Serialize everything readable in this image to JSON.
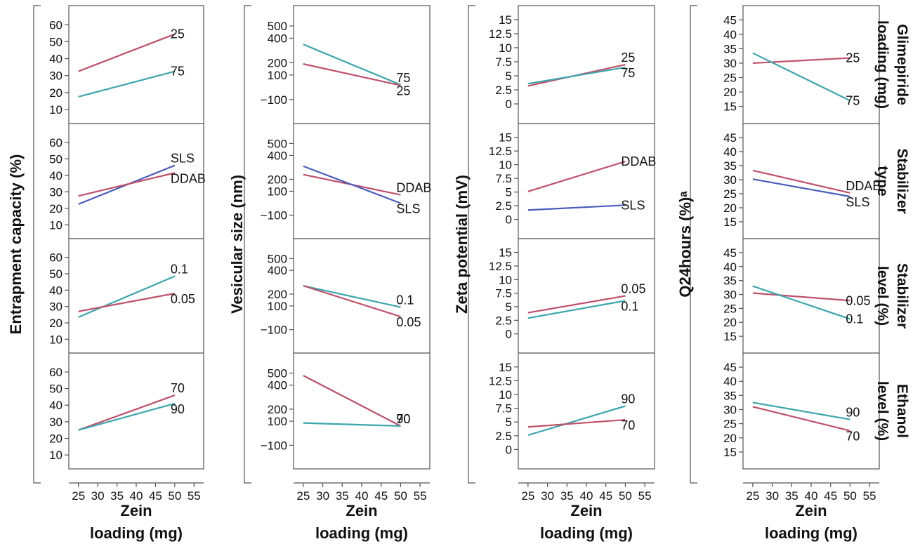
{
  "x_axis": {
    "title_line1": "Zein",
    "title_line2": "loading (mg)",
    "ticks": [
      25,
      30,
      35,
      40,
      45,
      50,
      55
    ],
    "range": [
      22.5,
      57.5
    ]
  },
  "colors": {
    "series_a": "#c0506a",
    "series_b": "#3aa6ad",
    "series_blue": "#4a5dbd"
  },
  "row_titles": [
    [
      "Glimepiride",
      "loading (mg)"
    ],
    [
      "Stabilizer",
      "type"
    ],
    [
      "Stabilizer",
      "level (%)"
    ],
    [
      "Ethanol",
      "level (%)"
    ]
  ],
  "chart_data": [
    {
      "type": "line",
      "ylabel": "Entrapment capacity (%)",
      "yticks": [
        10,
        20,
        30,
        40,
        50,
        60
      ],
      "ylim": [
        5,
        68
      ],
      "panels": [
        {
          "factor": "Glimepiride loading (mg)",
          "series": [
            {
              "name": "25",
              "color": "#c0506a",
              "x": [
                25,
                50
              ],
              "y": [
                32.5,
                54.5
              ]
            },
            {
              "name": "75",
              "color": "#3aa6ad",
              "x": [
                25,
                50
              ],
              "y": [
                17.5,
                32.5
              ]
            }
          ]
        },
        {
          "factor": "Stabilizer type",
          "series": [
            {
              "name": "SLS",
              "color": "#4a5dbd",
              "x": [
                25,
                50
              ],
              "y": [
                22.5,
                46
              ]
            },
            {
              "name": "DDAB",
              "color": "#c0506a",
              "x": [
                25,
                50
              ],
              "y": [
                27.5,
                41.5
              ]
            }
          ]
        },
        {
          "factor": "Stabilizer level (%)",
          "series": [
            {
              "name": "0.1",
              "color": "#3aa6ad",
              "x": [
                25,
                50
              ],
              "y": [
                23.5,
                48.5
              ]
            },
            {
              "name": "0.05",
              "color": "#c0506a",
              "x": [
                25,
                50
              ],
              "y": [
                27,
                38
              ]
            }
          ]
        },
        {
          "factor": "Ethanol level (%)",
          "series": [
            {
              "name": "70",
              "color": "#c0506a",
              "x": [
                25,
                50
              ],
              "y": [
                25,
                46
              ]
            },
            {
              "name": "90",
              "color": "#3aa6ad",
              "x": [
                25,
                50
              ],
              "y": [
                25,
                41
              ]
            }
          ]
        }
      ]
    },
    {
      "type": "line",
      "ylabel": "Vesicular size (nm)",
      "yticks": [
        -100,
        100,
        200,
        400,
        500
      ],
      "ytick_labels": [
        "−100",
        "100",
        "200",
        "400",
        "500"
      ],
      "ylim": [
        -250,
        620
      ],
      "panels": [
        {
          "factor": "Glimepiride loading (mg)",
          "series": [
            {
              "name": "75",
              "color": "#3aa6ad",
              "x": [
                25,
                50
              ],
              "y": [
                350,
                20
              ]
            },
            {
              "name": "25",
              "color": "#c0506a",
              "x": [
                25,
                50
              ],
              "y": [
                190,
                15
              ]
            }
          ]
        },
        {
          "factor": "Stabilizer type",
          "series": [
            {
              "name": "DDAB",
              "color": "#c0506a",
              "x": [
                25,
                50
              ],
              "y": [
                240,
                70
              ]
            },
            {
              "name": "SLS",
              "color": "#4a5dbd",
              "x": [
                25,
                50
              ],
              "y": [
                310,
                0
              ]
            }
          ]
        },
        {
          "factor": "Stabilizer level (%)",
          "series": [
            {
              "name": "0.1",
              "color": "#3aa6ad",
              "x": [
                25,
                50
              ],
              "y": [
                270,
                90
              ]
            },
            {
              "name": "0.05",
              "color": "#c0506a",
              "x": [
                25,
                50
              ],
              "y": [
                270,
                10
              ]
            }
          ]
        },
        {
          "factor": "Ethanol level (%)",
          "series": [
            {
              "name": "70",
              "color": "#c0506a",
              "x": [
                25,
                50
              ],
              "y": [
                480,
                60
              ]
            },
            {
              "name": "90",
              "color": "#3aa6ad",
              "x": [
                25,
                50
              ],
              "y": [
                85,
                60
              ]
            }
          ]
        }
      ]
    },
    {
      "type": "line",
      "ylabel": "Zeta potential (mV)",
      "yticks": [
        0,
        2.5,
        5,
        7.5,
        10,
        12.5,
        15
      ],
      "ylim": [
        -2.5,
        16.5
      ],
      "panels": [
        {
          "factor": "Glimepiride loading (mg)",
          "series": [
            {
              "name": "25",
              "color": "#c0506a",
              "x": [
                25,
                50
              ],
              "y": [
                3.2,
                7
              ]
            },
            {
              "name": "75",
              "color": "#3aa6ad",
              "x": [
                25,
                50
              ],
              "y": [
                3.6,
                6.5
              ]
            }
          ]
        },
        {
          "factor": "Stabilizer type",
          "series": [
            {
              "name": "DDAB",
              "color": "#c0506a",
              "x": [
                25,
                50
              ],
              "y": [
                5.1,
                10.6
              ]
            },
            {
              "name": "SLS",
              "color": "#4a5dbd",
              "x": [
                25,
                50
              ],
              "y": [
                1.7,
                2.6
              ]
            }
          ]
        },
        {
          "factor": "Stabilizer level (%)",
          "series": [
            {
              "name": "0.05",
              "color": "#c0506a",
              "x": [
                25,
                50
              ],
              "y": [
                3.9,
                7
              ]
            },
            {
              "name": "0.1",
              "color": "#3aa6ad",
              "x": [
                25,
                50
              ],
              "y": [
                2.9,
                6.1
              ]
            }
          ]
        },
        {
          "factor": "Ethanol level (%)",
          "series": [
            {
              "name": "90",
              "color": "#3aa6ad",
              "x": [
                25,
                50
              ],
              "y": [
                2.6,
                7.9
              ]
            },
            {
              "name": "70",
              "color": "#c0506a",
              "x": [
                25,
                50
              ],
              "y": [
                4.1,
                5.4
              ]
            }
          ]
        }
      ]
    },
    {
      "type": "line",
      "ylabel": "Q24hours (%)ᵃ",
      "yticks": [
        15,
        20,
        25,
        30,
        35,
        40,
        45
      ],
      "ylim": [
        11,
        48
      ],
      "panels": [
        {
          "factor": "Glimepiride loading (mg)",
          "series": [
            {
              "name": "25",
              "color": "#c0506a",
              "x": [
                25,
                50
              ],
              "y": [
                30,
                31.8
              ]
            },
            {
              "name": "75",
              "color": "#3aa6ad",
              "x": [
                25,
                50
              ],
              "y": [
                33.5,
                17
              ]
            }
          ]
        },
        {
          "factor": "Stabilizer type",
          "series": [
            {
              "name": "DDAB",
              "color": "#c0506a",
              "x": [
                25,
                50
              ],
              "y": [
                33.3,
                25.3
              ]
            },
            {
              "name": "SLS",
              "color": "#4a5dbd",
              "x": [
                25,
                50
              ],
              "y": [
                30.2,
                24
              ]
            }
          ]
        },
        {
          "factor": "Stabilizer level (%)",
          "series": [
            {
              "name": "0.05",
              "color": "#c0506a",
              "x": [
                25,
                50
              ],
              "y": [
                30.5,
                27.8
              ]
            },
            {
              "name": "0.1",
              "color": "#3aa6ad",
              "x": [
                25,
                50
              ],
              "y": [
                33,
                21.2
              ]
            }
          ]
        },
        {
          "factor": "Ethanol level (%)",
          "series": [
            {
              "name": "90",
              "color": "#3aa6ad",
              "x": [
                25,
                50
              ],
              "y": [
                32.5,
                26.5
              ]
            },
            {
              "name": "70",
              "color": "#c0506a",
              "x": [
                25,
                50
              ],
              "y": [
                31,
                22.5
              ]
            }
          ]
        }
      ]
    }
  ]
}
